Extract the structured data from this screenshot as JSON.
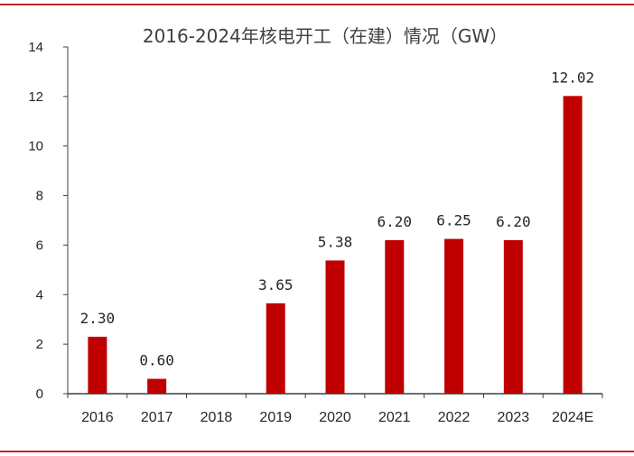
{
  "chart_data": {
    "type": "bar",
    "title": "2016-2024年核电开工（在建）情况（GW）",
    "categories": [
      "2016",
      "2017",
      "2018",
      "2019",
      "2020",
      "2021",
      "2022",
      "2023",
      "2024E"
    ],
    "values": [
      2.3,
      0.6,
      0,
      3.65,
      5.38,
      6.2,
      6.25,
      6.2,
      12.02
    ],
    "data_labels": [
      "2.30",
      "0.60",
      "",
      "3.65",
      "5.38",
      "6.20",
      "6.25",
      "6.20",
      "12.02"
    ],
    "yticks": [
      "0",
      "2",
      "4",
      "6",
      "8",
      "10",
      "12",
      "14"
    ],
    "ylim": [
      0,
      14
    ],
    "bar_color": "#c00000",
    "grid": false,
    "legend": "none"
  }
}
